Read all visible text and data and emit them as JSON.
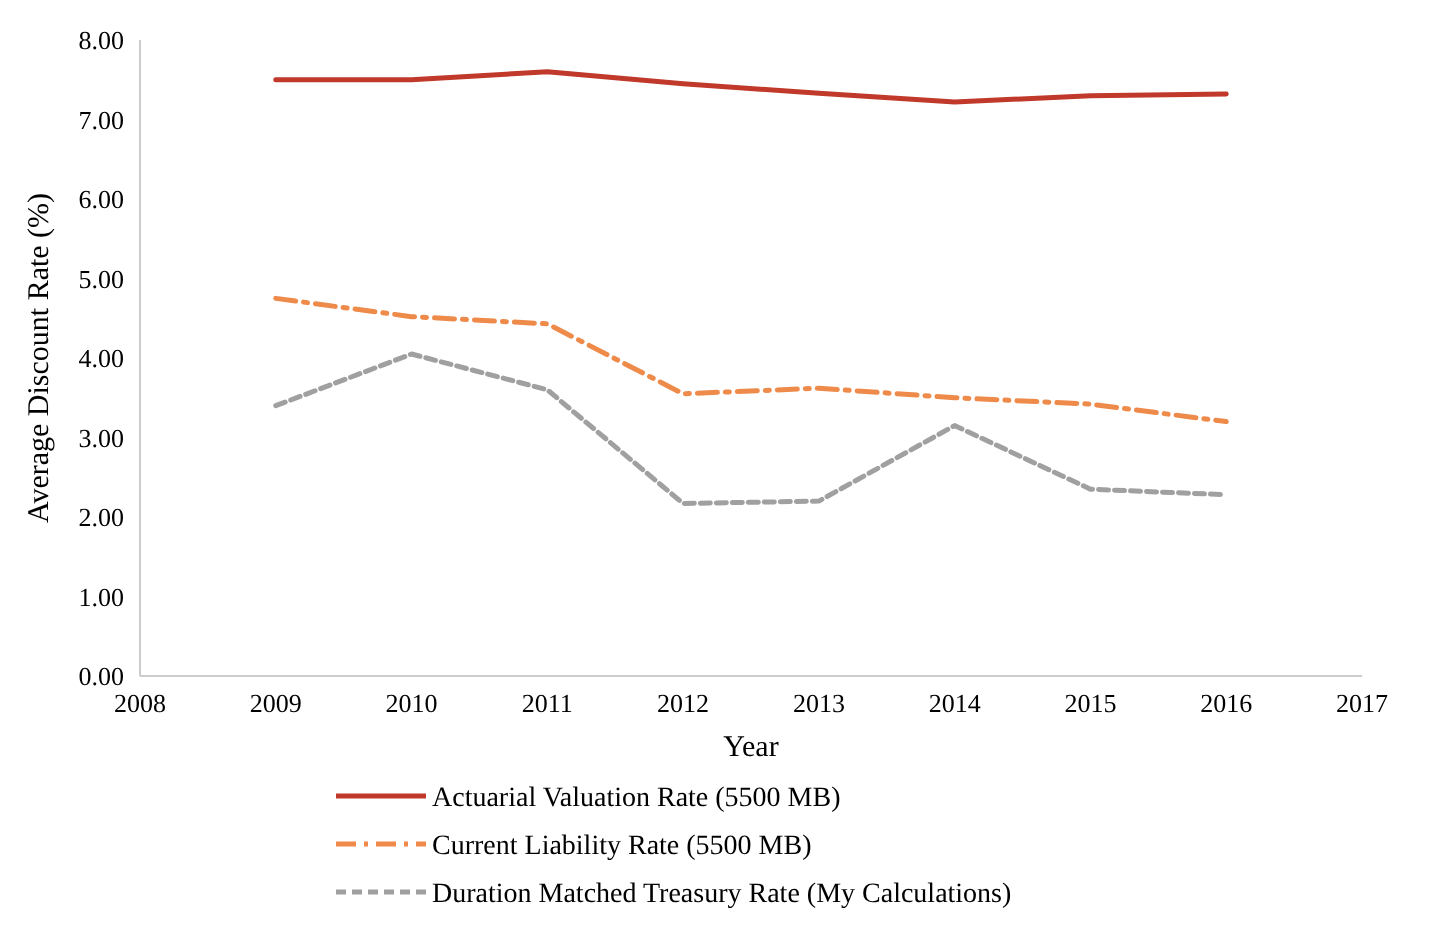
{
  "chart_data": {
    "type": "line",
    "xlabel": "Year",
    "ylabel": "Average Discount Rate (%)",
    "x": [
      2009,
      2010,
      2011,
      2012,
      2013,
      2014,
      2015,
      2016
    ],
    "xlim": [
      2008,
      2017
    ],
    "xticks": [
      2008,
      2009,
      2010,
      2011,
      2012,
      2013,
      2014,
      2015,
      2016,
      2017
    ],
    "ylim": [
      0,
      8
    ],
    "yticks": [
      {
        "value": 0,
        "label": "0.00"
      },
      {
        "value": 1,
        "label": "1.00"
      },
      {
        "value": 2,
        "label": "2.00"
      },
      {
        "value": 3,
        "label": "3.00"
      },
      {
        "value": 4,
        "label": "4.00"
      },
      {
        "value": 5,
        "label": "5.00"
      },
      {
        "value": 6,
        "label": "6.00"
      },
      {
        "value": 7,
        "label": "7.00"
      },
      {
        "value": 8,
        "label": "8.00"
      }
    ],
    "grid": false,
    "legend": "bottom",
    "marker": "none",
    "series": [
      {
        "name": "Actuarial Valuation Rate (5500 MB)",
        "color": "#c0392b",
        "line_style": "solid",
        "values": [
          7.5,
          7.5,
          7.6,
          7.45,
          7.33,
          7.22,
          7.3,
          7.32
        ]
      },
      {
        "name": "Current Liability Rate (5500 MB)",
        "color": "#ee8a4a",
        "line_style": "dashed",
        "values": [
          4.75,
          4.52,
          4.43,
          3.55,
          3.62,
          3.5,
          3.42,
          3.2
        ]
      },
      {
        "name": "Duration Matched Treasury Rate (My Calculations)",
        "color": "#a0a0a0",
        "line_style": "dotted",
        "values": [
          3.4,
          4.05,
          3.6,
          2.17,
          2.2,
          3.15,
          2.35,
          2.28
        ]
      }
    ]
  }
}
